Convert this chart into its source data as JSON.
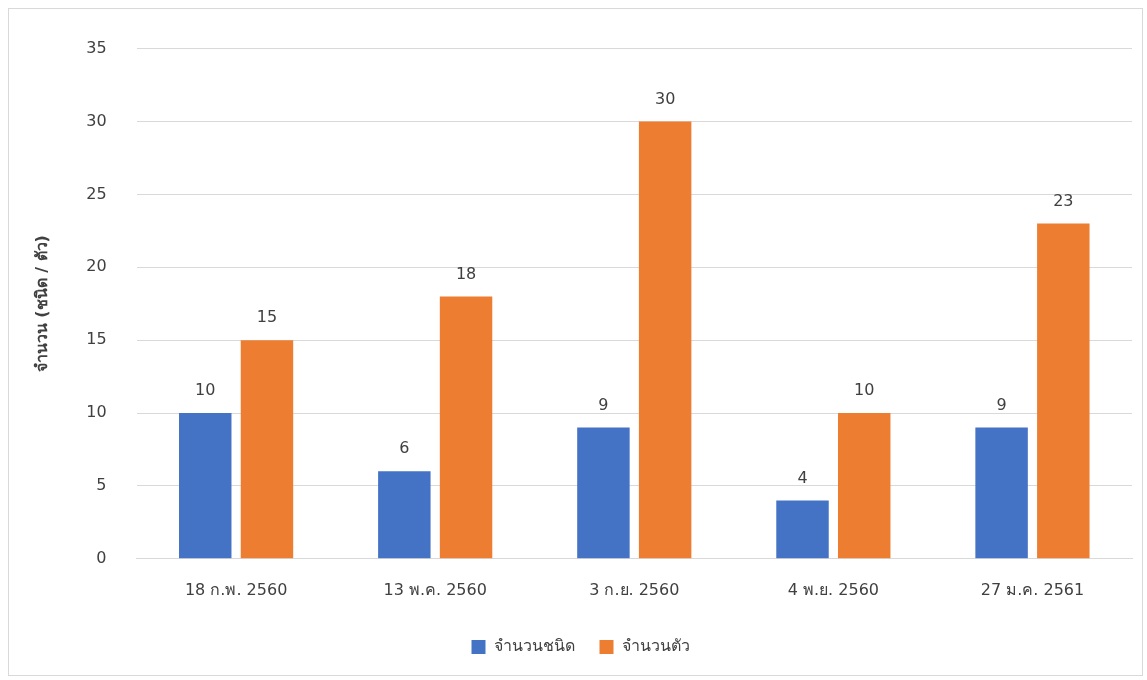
{
  "chart_data": {
    "type": "bar",
    "ylabel": "จำนวน (ชนิด / ตัว)",
    "categories": [
      "18 ก.พ. 2560",
      "13 พ.ค. 2560",
      "3 ก.ย. 2560",
      "4 พ.ย. 2560",
      "27 ม.ค. 2561"
    ],
    "series": [
      {
        "name": "จำนวนชนิด",
        "color": "#4472c4",
        "values": [
          10,
          6,
          9,
          4,
          9
        ]
      },
      {
        "name": "จำนวนตัว",
        "color": "#ed7d31",
        "values": [
          15,
          18,
          30,
          10,
          23
        ]
      }
    ],
    "ylim": [
      0,
      35
    ],
    "yticks": [
      0,
      5,
      10,
      15,
      20,
      25,
      30,
      35
    ],
    "grid": "y",
    "legend": "bottom",
    "data_labels": true
  }
}
